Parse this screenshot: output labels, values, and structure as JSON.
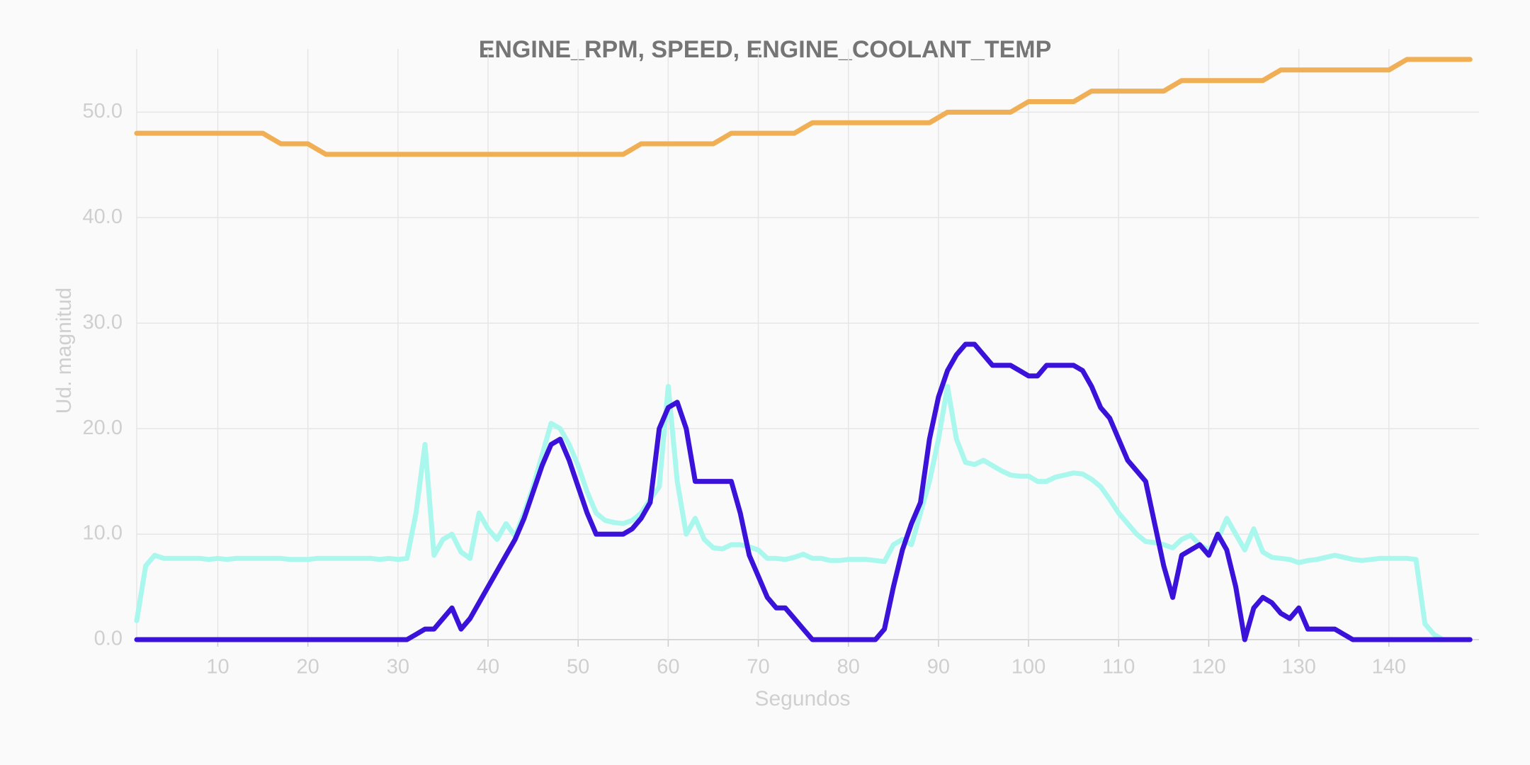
{
  "chart_data": {
    "type": "line",
    "title": "ENGINE_RPM, SPEED, ENGINE_COOLANT_TEMP",
    "x_label": "Segundos",
    "y_label": "Ud. magnitud",
    "x": [
      1,
      2,
      3,
      4,
      5,
      6,
      7,
      8,
      9,
      10,
      11,
      12,
      13,
      14,
      15,
      16,
      17,
      18,
      19,
      20,
      21,
      22,
      23,
      24,
      25,
      26,
      27,
      28,
      29,
      30,
      31,
      32,
      33,
      34,
      35,
      36,
      37,
      38,
      39,
      40,
      41,
      42,
      43,
      44,
      45,
      46,
      47,
      48,
      49,
      50,
      51,
      52,
      53,
      54,
      55,
      56,
      57,
      58,
      59,
      60,
      61,
      62,
      63,
      64,
      65,
      66,
      67,
      68,
      69,
      70,
      71,
      72,
      73,
      74,
      75,
      76,
      77,
      78,
      79,
      80,
      81,
      82,
      83,
      84,
      85,
      86,
      87,
      88,
      89,
      90,
      91,
      92,
      93,
      94,
      95,
      96,
      97,
      98,
      99,
      100,
      101,
      102,
      103,
      104,
      105,
      106,
      107,
      108,
      109,
      110,
      111,
      112,
      113,
      114,
      115,
      116,
      117,
      118,
      119,
      120,
      121,
      122,
      123,
      124,
      125,
      126,
      127,
      128,
      129,
      130,
      131,
      132,
      133,
      134,
      135,
      136,
      137,
      138,
      139,
      140,
      141,
      142,
      143,
      144,
      145,
      146,
      147,
      148,
      149
    ],
    "series": [
      {
        "color": "#aaf7ee",
        "values": [
          1.8,
          7,
          8,
          7.7,
          7.7,
          7.7,
          7.7,
          7.7,
          7.6,
          7.7,
          7.6,
          7.7,
          7.7,
          7.7,
          7.7,
          7.7,
          7.7,
          7.6,
          7.6,
          7.6,
          7.7,
          7.7,
          7.7,
          7.7,
          7.7,
          7.7,
          7.7,
          7.6,
          7.7,
          7.6,
          7.7,
          12,
          18.5,
          8,
          9.5,
          10,
          8.3,
          7.7,
          12,
          10.5,
          9.5,
          11,
          9.8,
          12,
          14.5,
          17.5,
          20.5,
          20,
          18.5,
          16.5,
          14,
          12,
          11.3,
          11.1,
          11,
          11.3,
          12,
          13.3,
          14.5,
          24,
          15,
          10,
          11.5,
          9.5,
          8.7,
          8.6,
          9,
          9,
          8.8,
          8.5,
          7.7,
          7.7,
          7.6,
          7.8,
          8.1,
          7.7,
          7.7,
          7.5,
          7.5,
          7.6,
          7.6,
          7.6,
          7.5,
          7.4,
          9,
          9.5,
          9,
          12,
          15,
          19,
          24,
          19,
          16.8,
          16.6,
          17,
          16.5,
          16,
          15.6,
          15.5,
          15.5,
          15,
          15,
          15.4,
          15.6,
          15.8,
          15.7,
          15.2,
          14.5,
          13.3,
          12,
          11,
          10,
          9.3,
          9.2,
          9,
          8.7,
          9.5,
          9.9,
          9,
          8.5,
          9.5,
          11.5,
          10,
          8.5,
          10.5,
          8.3,
          7.8,
          7.7,
          7.6,
          7.3,
          7.5,
          7.6,
          7.8,
          8,
          7.8,
          7.6,
          7.5,
          7.6,
          7.7,
          7.7,
          7.7,
          7.7,
          7.6,
          1.5,
          0.5,
          0,
          0,
          0,
          0
        ]
      },
      {
        "color": "#3b12d9",
        "values": [
          0,
          0,
          0,
          0,
          0,
          0,
          0,
          0,
          0,
          0,
          0,
          0,
          0,
          0,
          0,
          0,
          0,
          0,
          0,
          0,
          0,
          0,
          0,
          0,
          0,
          0,
          0,
          0,
          0,
          0,
          0,
          0.5,
          1,
          1,
          2,
          3,
          1,
          2,
          3.5,
          5,
          6.5,
          8,
          9.5,
          11.5,
          14,
          16.5,
          18.5,
          19,
          17,
          14.5,
          12,
          10,
          10,
          10,
          10,
          10.5,
          11.5,
          13,
          20,
          22,
          22.5,
          20,
          15,
          15,
          15,
          15,
          15,
          12,
          8,
          6,
          4,
          3,
          3,
          2,
          1,
          0,
          0,
          0,
          0,
          0,
          0,
          0,
          0,
          1,
          5,
          8.5,
          11,
          13,
          19,
          23,
          25.5,
          27,
          28,
          28,
          27,
          26,
          26,
          26,
          25.5,
          25,
          25,
          26,
          26,
          26,
          26,
          25.5,
          24,
          22,
          21,
          19,
          17,
          16,
          15,
          11,
          7,
          4,
          8,
          8.5,
          9,
          8,
          10,
          8.5,
          5,
          0,
          3,
          4,
          3.5,
          2.5,
          2,
          3,
          1,
          1,
          1,
          1,
          0.5,
          0,
          0,
          0,
          0,
          0,
          0,
          0,
          0,
          0,
          0,
          0,
          0,
          0,
          0
        ]
      },
      {
        "color": "#f0ae55",
        "values": [
          48,
          48,
          48,
          48,
          48,
          48,
          48,
          48,
          48,
          48,
          48,
          48,
          48,
          48,
          48,
          47.5,
          47,
          47,
          47,
          47,
          46.5,
          46,
          46,
          46,
          46,
          46,
          46,
          46,
          46,
          46,
          46,
          46,
          46,
          46,
          46,
          46,
          46,
          46,
          46,
          46,
          46,
          46,
          46,
          46,
          46,
          46,
          46,
          46,
          46,
          46,
          46,
          46,
          46,
          46,
          46,
          46.5,
          47,
          47,
          47,
          47,
          47,
          47,
          47,
          47,
          47,
          47.5,
          48,
          48,
          48,
          48,
          48,
          48,
          48,
          48,
          48.5,
          49,
          49,
          49,
          49,
          49,
          49,
          49,
          49,
          49,
          49,
          49,
          49,
          49,
          49,
          49.5,
          50,
          50,
          50,
          50,
          50,
          50,
          50,
          50,
          50.5,
          51,
          51,
          51,
          51,
          51,
          51,
          51.5,
          52,
          52,
          52,
          52,
          52,
          52,
          52,
          52,
          52,
          52.5,
          53,
          53,
          53,
          53,
          53,
          53,
          53,
          53,
          53,
          53,
          53.5,
          54,
          54,
          54,
          54,
          54,
          54,
          54,
          54,
          54,
          54,
          54,
          54,
          54,
          54.5,
          55,
          55,
          55,
          55,
          55,
          55,
          55,
          55
        ]
      }
    ],
    "xlim": [
      1,
      150
    ],
    "ylim": [
      0,
      56
    ],
    "xticks": [
      10,
      20,
      30,
      40,
      50,
      60,
      70,
      80,
      90,
      100,
      110,
      120,
      130,
      140
    ],
    "yticks": [
      {
        "value": 0,
        "label": "0.0"
      },
      {
        "value": 10,
        "label": "10.0"
      },
      {
        "value": 20,
        "label": "20.0"
      },
      {
        "value": 30,
        "label": "30.0"
      },
      {
        "value": 40,
        "label": "40.0"
      },
      {
        "value": 50,
        "label": "50.0"
      }
    ],
    "grid": true
  }
}
